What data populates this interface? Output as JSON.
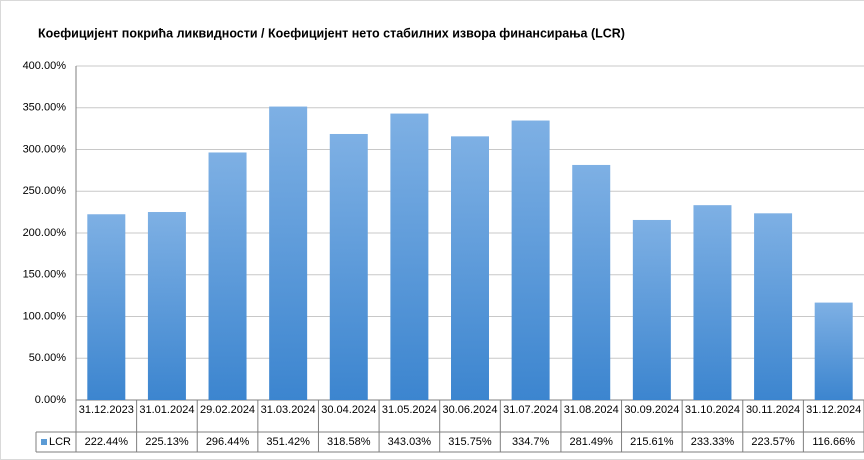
{
  "chart_data": {
    "type": "bar",
    "title": "Коефицијент покрића ликвидности / Коефицијент нето стабилних извора финансирања  (LCR)",
    "categories": [
      "31.12.2023",
      "31.01.2024",
      "29.02.2024",
      "31.03.2024",
      "30.04.2024",
      "31.05.2024",
      "30.06.2024",
      "31.07.2024",
      "31.08.2024",
      "30.09.2024",
      "31.10.2024",
      "30.11.2024",
      "31.12.2024"
    ],
    "series": [
      {
        "name": "LCR",
        "color": "#5b9bd5",
        "values": [
          222.44,
          225.13,
          296.44,
          351.42,
          318.58,
          343.03,
          315.75,
          334.7,
          281.49,
          215.61,
          233.33,
          223.57,
          116.66
        ],
        "value_labels": [
          "222.44%",
          "225.13%",
          "296.44%",
          "351.42%",
          "318.58%",
          "343.03%",
          "315.75%",
          "334.7%",
          "281.49%",
          "215.61%",
          "233.33%",
          "223.57%",
          "116.66%"
        ]
      }
    ],
    "ylim": [
      0,
      400
    ],
    "yticks": [
      {
        "value": 0,
        "label": "0.00%"
      },
      {
        "value": 50,
        "label": "50.00%"
      },
      {
        "value": 100,
        "label": "100.00%"
      },
      {
        "value": 150,
        "label": "150.00%"
      },
      {
        "value": 200,
        "label": "200.00%"
      },
      {
        "value": 250,
        "label": "250.00%"
      },
      {
        "value": 300,
        "label": "300.00%"
      },
      {
        "value": 350,
        "label": "350.00%"
      },
      {
        "value": 400,
        "label": "400.00%"
      }
    ],
    "grid": true
  }
}
